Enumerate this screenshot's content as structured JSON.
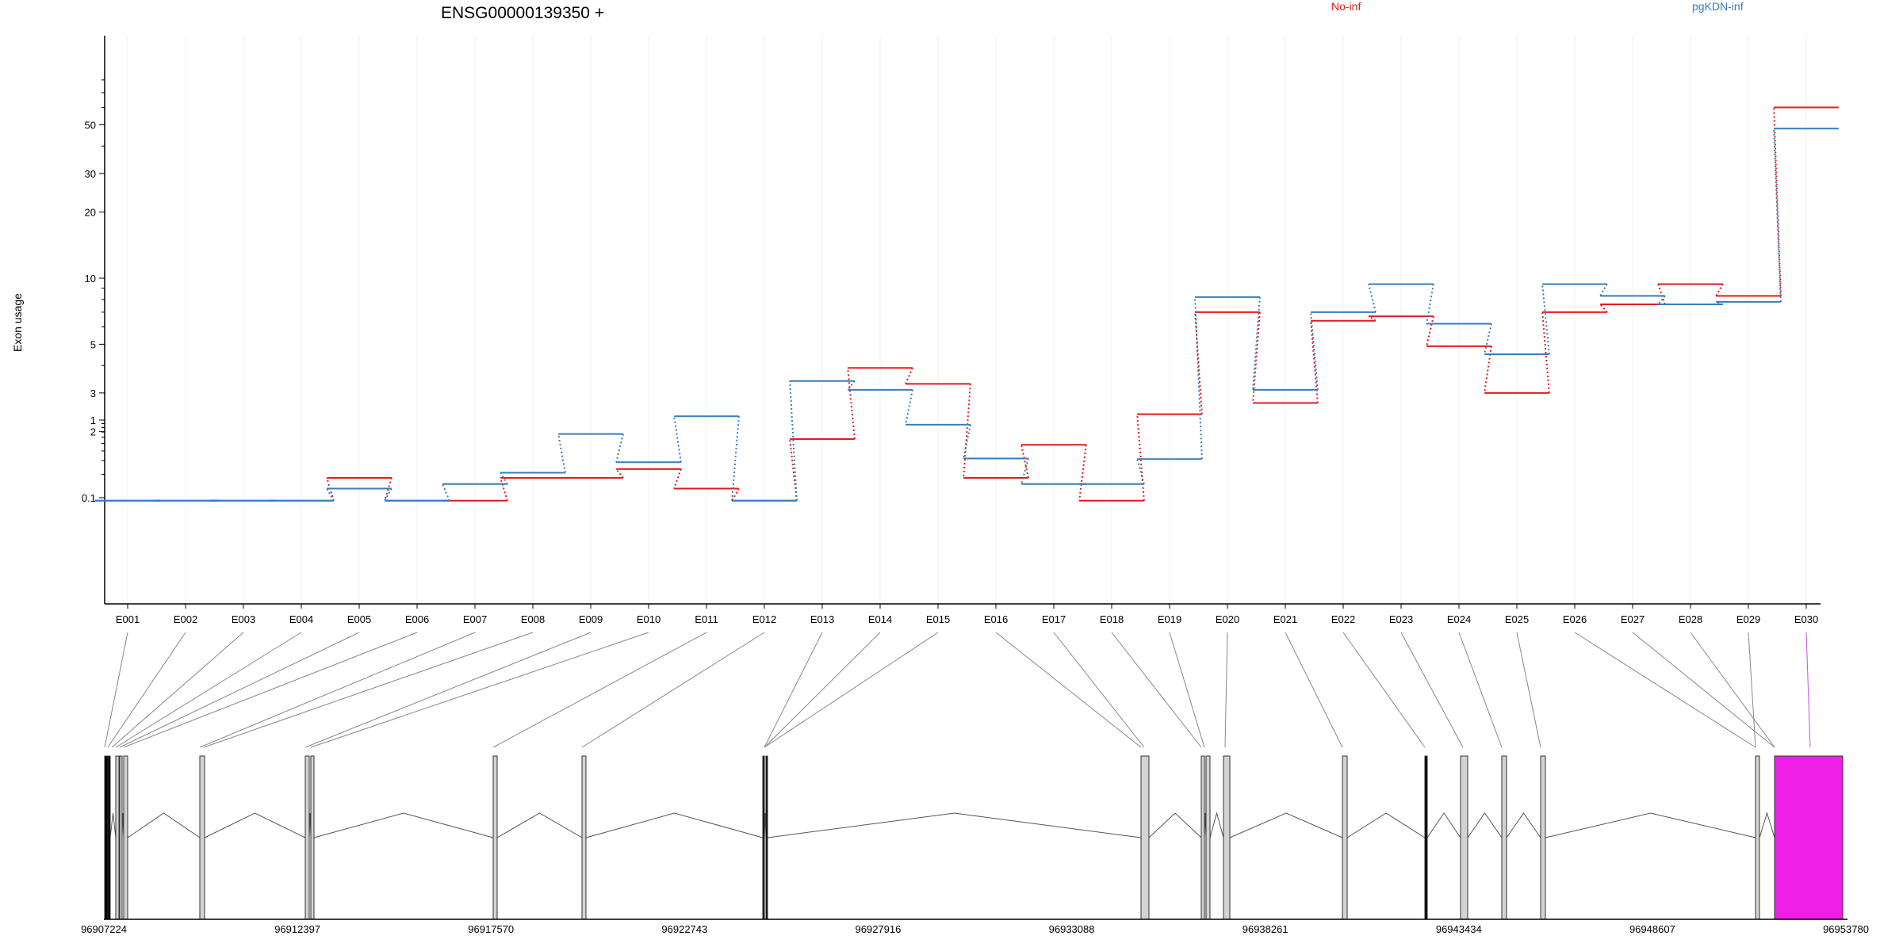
{
  "chart_data": {
    "type": "line",
    "title": "ENSG00000139350 +",
    "ylabel": "Exon usage",
    "y_scale": "log",
    "y_ticks": [
      0.1,
      1,
      2,
      3,
      5,
      10,
      20,
      30,
      50
    ],
    "categories": [
      "E001",
      "E002",
      "E003",
      "E004",
      "E005",
      "E006",
      "E007",
      "E008",
      "E009",
      "E010",
      "E011",
      "E012",
      "E013",
      "E014",
      "E015",
      "E016",
      "E017",
      "E018",
      "E019",
      "E020",
      "E021",
      "E022",
      "E023",
      "E024",
      "E025",
      "E026",
      "E027",
      "E028",
      "E029",
      "E030"
    ],
    "series": [
      {
        "name": "No-inf",
        "color": "#e41a1c",
        "values": [
          0.08,
          0.08,
          0.08,
          0.08,
          0.18,
          0.08,
          0.08,
          0.18,
          0.18,
          1.35,
          1.1,
          0.08,
          1.85,
          3.9,
          3.3,
          0.18,
          0.48,
          0.08,
          2.4,
          7.0,
          2.7,
          6.4,
          6.7,
          4.9,
          3.0,
          7.0,
          7.6,
          9.4,
          8.3,
          60.0
        ]
      },
      {
        "name": "pgKDN-inf",
        "color": "#377eb8",
        "values": [
          0.08,
          0.08,
          0.08,
          0.08,
          1.1,
          0.08,
          0.15,
          1.3,
          1.95,
          1.45,
          2.35,
          0.08,
          3.4,
          3.1,
          2.15,
          0.32,
          0.15,
          0.15,
          1.5,
          8.2,
          3.1,
          7.0,
          9.4,
          6.2,
          4.5,
          9.4,
          8.3,
          7.6,
          7.8,
          48.0
        ]
      }
    ],
    "gene_model": {
      "chromosome_ticks": [
        "96907224",
        "96912397",
        "96917570",
        "96922743",
        "96927916",
        "96933088",
        "96938261",
        "96943434",
        "96948607",
        "96953780"
      ],
      "exon_fill": "#d3d3d3",
      "highlight_exon": "E030",
      "highlight_color": "#f01fe6"
    }
  }
}
